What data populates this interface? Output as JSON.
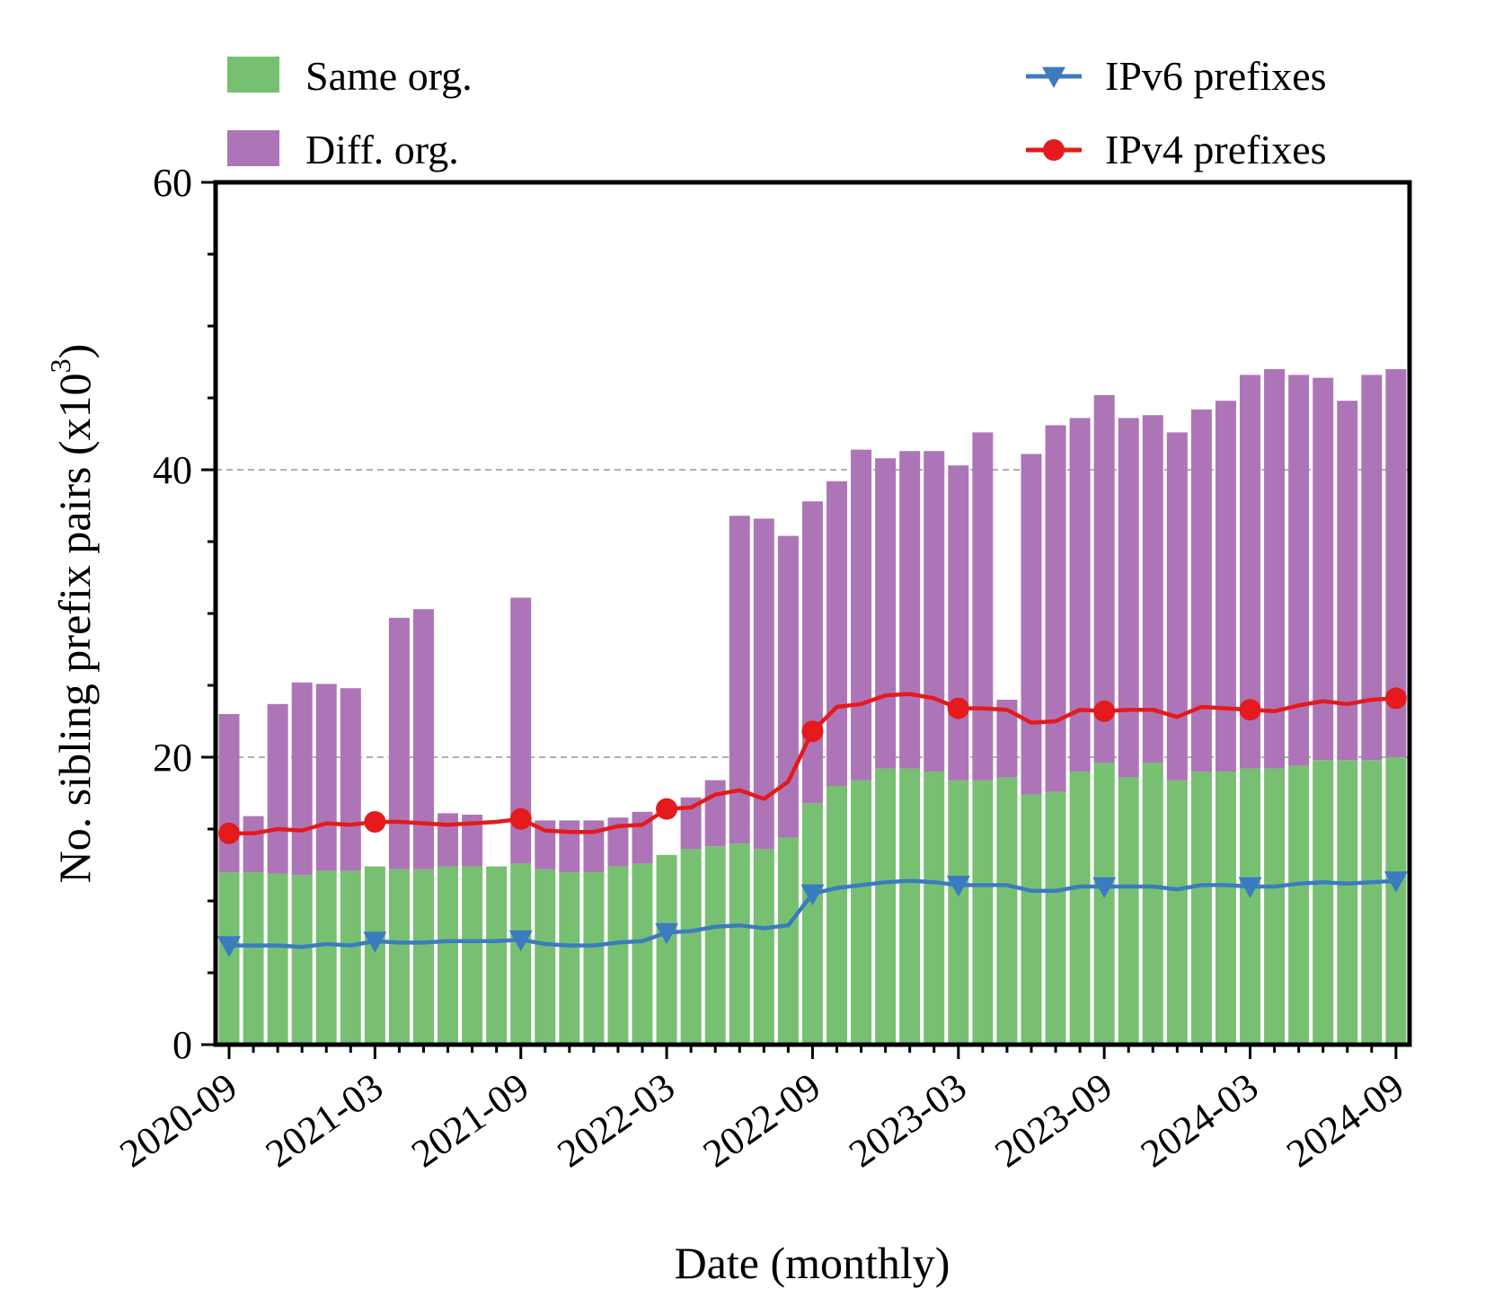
{
  "chart_data": {
    "type": "bar",
    "stacked": true,
    "xlabel": "Date (monthly)",
    "ylabel": "No. sibling prefix pairs (x10",
    "ylabel_sup": "3",
    "ylabel_close": ")",
    "ylim": [
      0,
      60
    ],
    "y_ticks": [
      0,
      20,
      40,
      60
    ],
    "y_minor_step": 5,
    "grid": "dashed horizontal at 20 and 40",
    "x_tick_labels": [
      "2020-09",
      "2021-03",
      "2021-09",
      "2022-03",
      "2022-09",
      "2023-03",
      "2023-09",
      "2024-03",
      "2024-09"
    ],
    "x_tick_every_months": 6,
    "months": [
      "2020-09",
      "2020-10",
      "2020-11",
      "2020-12",
      "2021-01",
      "2021-02",
      "2021-03",
      "2021-04",
      "2021-05",
      "2021-06",
      "2021-07",
      "2021-08",
      "2021-09",
      "2021-10",
      "2021-11",
      "2021-12",
      "2022-01",
      "2022-02",
      "2022-03",
      "2022-04",
      "2022-05",
      "2022-06",
      "2022-07",
      "2022-08",
      "2022-09",
      "2022-10",
      "2022-11",
      "2022-12",
      "2023-01",
      "2023-02",
      "2023-03",
      "2023-04",
      "2023-05",
      "2023-06",
      "2023-07",
      "2023-08",
      "2023-09",
      "2023-10",
      "2023-11",
      "2023-12",
      "2024-01",
      "2024-02",
      "2024-03",
      "2024-04",
      "2024-05",
      "2024-06",
      "2024-07",
      "2024-08",
      "2024-09"
    ],
    "series": [
      {
        "name": "Same org.",
        "kind": "bar",
        "color": "#77c071",
        "values": [
          12.0,
          12.0,
          11.9,
          11.8,
          12.1,
          12.1,
          12.4,
          12.2,
          12.2,
          12.4,
          12.4,
          12.4,
          12.6,
          12.2,
          12.0,
          12.0,
          12.4,
          12.6,
          13.2,
          13.6,
          13.8,
          14.0,
          13.6,
          14.4,
          16.8,
          18.0,
          18.4,
          19.2,
          19.2,
          19.0,
          18.4,
          18.4,
          18.6,
          17.4,
          17.6,
          19.0,
          19.6,
          18.6,
          19.6,
          18.4,
          19.0,
          19.0,
          19.2,
          19.2,
          19.4,
          19.8,
          19.8,
          19.8,
          20.0
        ]
      },
      {
        "name": "Diff. org.",
        "kind": "bar",
        "color": "#ad75b7",
        "values": [
          11.0,
          3.9,
          11.8,
          13.4,
          13.0,
          12.7,
          0.0,
          17.5,
          18.1,
          3.7,
          3.6,
          0.0,
          18.5,
          3.4,
          3.6,
          3.6,
          3.4,
          3.6,
          0.0,
          3.6,
          4.6,
          22.8,
          23.0,
          21.0,
          21.0,
          21.2,
          23.0,
          21.6,
          22.1,
          22.3,
          21.9,
          24.2,
          5.4,
          23.7,
          25.5,
          24.6,
          25.6,
          25.0,
          24.2,
          24.2,
          25.2,
          25.8,
          27.4,
          27.8,
          27.2,
          26.6,
          25.0,
          26.8,
          27.0
        ]
      },
      {
        "name": "IPv6 prefixes",
        "kind": "line",
        "marker": "triangle-down",
        "color": "#3b7bbf",
        "values": [
          6.9,
          6.9,
          6.9,
          6.8,
          7.0,
          6.9,
          7.2,
          7.1,
          7.1,
          7.2,
          7.2,
          7.2,
          7.3,
          7.0,
          6.9,
          6.9,
          7.1,
          7.2,
          7.8,
          7.9,
          8.2,
          8.3,
          8.1,
          8.3,
          10.5,
          10.9,
          11.1,
          11.3,
          11.4,
          11.3,
          11.1,
          11.1,
          11.1,
          10.7,
          10.7,
          11.0,
          11.0,
          11.0,
          11.0,
          10.8,
          11.1,
          11.1,
          11.0,
          11.0,
          11.2,
          11.3,
          11.2,
          11.3,
          11.4
        ]
      },
      {
        "name": "IPv4 prefixes",
        "kind": "line",
        "marker": "circle",
        "color": "#e41a1c",
        "values": [
          14.7,
          14.7,
          15.0,
          14.9,
          15.4,
          15.3,
          15.5,
          15.5,
          15.4,
          15.3,
          15.4,
          15.5,
          15.7,
          14.9,
          14.8,
          14.8,
          15.2,
          15.3,
          16.4,
          16.5,
          17.4,
          17.7,
          17.1,
          18.3,
          21.8,
          23.5,
          23.7,
          24.3,
          24.4,
          24.1,
          23.4,
          23.4,
          23.3,
          22.4,
          22.5,
          23.3,
          23.2,
          23.3,
          23.3,
          22.8,
          23.5,
          23.4,
          23.3,
          23.2,
          23.6,
          23.9,
          23.7,
          24.0,
          24.1
        ]
      }
    ],
    "legend": {
      "position": "top",
      "left": [
        "Same org.",
        "Diff. org."
      ],
      "right": [
        "IPv6 prefixes",
        "IPv4 prefixes"
      ]
    }
  }
}
